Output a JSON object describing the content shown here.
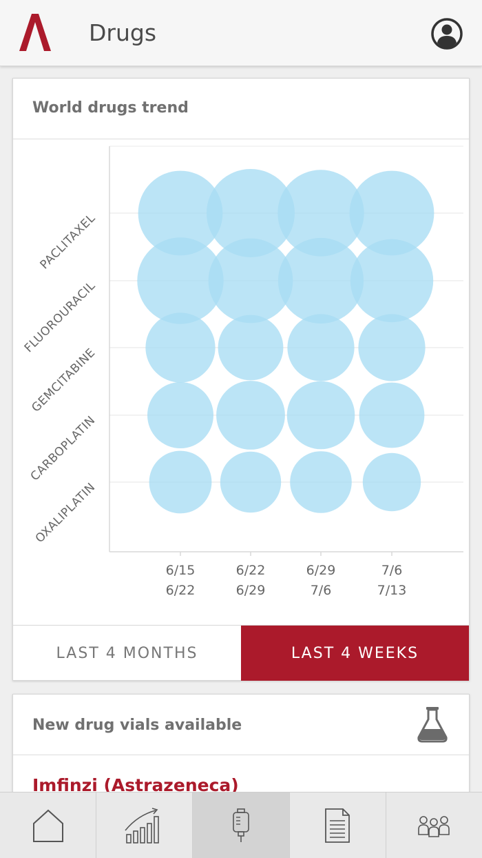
{
  "header": {
    "title": "Drugs",
    "brand_color": "#ab1a2b",
    "logo_icon": "logo-a-icon",
    "profile_icon": "user-circle-icon"
  },
  "trend_card": {
    "title": "World drugs trend",
    "range_options": [
      {
        "label": "LAST 4 MONTHS",
        "active": false
      },
      {
        "label": "LAST 4 WEEKS",
        "active": true
      }
    ]
  },
  "chart_data": {
    "type": "bubble",
    "title": "World drugs trend",
    "categories_y": [
      "PACLITAXEL",
      "FLUOROURACIL",
      "GEMCITABINE",
      "CARBOPLATIN",
      "OXALIPLATIN"
    ],
    "categories_x": [
      {
        "line1": "6/15",
        "line2": "6/22"
      },
      {
        "line1": "6/22",
        "line2": "6/29"
      },
      {
        "line1": "6/29",
        "line2": "7/6"
      },
      {
        "line1": "7/6",
        "line2": "7/13"
      }
    ],
    "relative_size": [
      [
        0.96,
        1.0,
        0.98,
        0.96
      ],
      [
        0.98,
        0.96,
        0.97,
        0.94
      ],
      [
        0.79,
        0.74,
        0.76,
        0.76
      ],
      [
        0.75,
        0.78,
        0.77,
        0.74
      ],
      [
        0.71,
        0.69,
        0.7,
        0.66
      ]
    ],
    "bubble_color": "#a8ddf3",
    "grid": true
  },
  "vials_card": {
    "title": "New drug vials available",
    "icon": "flask-icon",
    "items": [
      "Imfinzi (Astrazeneca)"
    ]
  },
  "tab_bar": {
    "tabs": [
      {
        "name": "home",
        "icon": "home-icon",
        "active": false
      },
      {
        "name": "trends",
        "icon": "bar-chart-icon",
        "active": false
      },
      {
        "name": "drugs",
        "icon": "iv-bag-icon",
        "active": true
      },
      {
        "name": "documents",
        "icon": "document-icon",
        "active": false
      },
      {
        "name": "people",
        "icon": "people-icon",
        "active": false
      }
    ]
  }
}
